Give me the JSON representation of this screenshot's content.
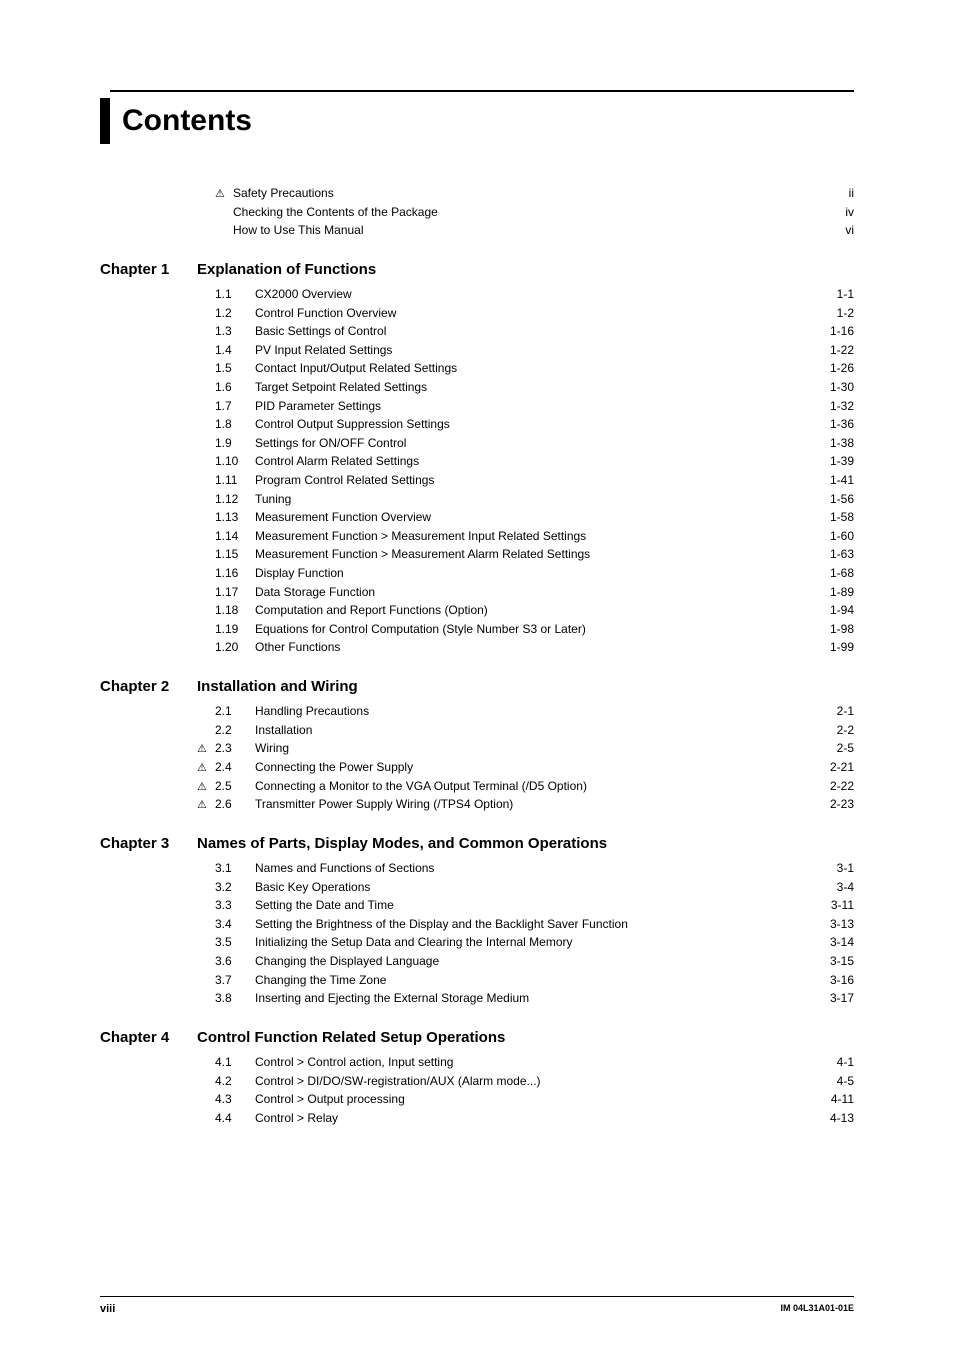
{
  "title": "Contents",
  "front_matter": [
    {
      "warn": true,
      "label": "Safety Precautions",
      "page": "ii"
    },
    {
      "warn": false,
      "label": "Checking the Contents of the Package",
      "page": "iv"
    },
    {
      "warn": false,
      "label": "How to Use This Manual",
      "page": "vi"
    }
  ],
  "chapters": [
    {
      "label": "Chapter 1",
      "title": "Explanation of Functions",
      "entries": [
        {
          "warn": false,
          "num": "1.1",
          "label": "CX2000 Overview",
          "page": "1-1"
        },
        {
          "warn": false,
          "num": "1.2",
          "label": "Control Function Overview",
          "page": "1-2"
        },
        {
          "warn": false,
          "num": "1.3",
          "label": "Basic Settings of Control",
          "page": "1-16"
        },
        {
          "warn": false,
          "num": "1.4",
          "label": "PV Input Related Settings",
          "page": "1-22"
        },
        {
          "warn": false,
          "num": "1.5",
          "label": "Contact Input/Output Related Settings",
          "page": "1-26"
        },
        {
          "warn": false,
          "num": "1.6",
          "label": "Target Setpoint Related Settings",
          "page": "1-30"
        },
        {
          "warn": false,
          "num": "1.7",
          "label": "PID Parameter Settings",
          "page": "1-32"
        },
        {
          "warn": false,
          "num": "1.8",
          "label": "Control Output Suppression Settings",
          "page": "1-36"
        },
        {
          "warn": false,
          "num": "1.9",
          "label": "Settings for ON/OFF Control",
          "page": "1-38"
        },
        {
          "warn": false,
          "num": "1.10",
          "label": "Control Alarm Related Settings",
          "page": "1-39"
        },
        {
          "warn": false,
          "num": "1.11",
          "label": "Program Control Related Settings",
          "page": "1-41"
        },
        {
          "warn": false,
          "num": "1.12",
          "label": "Tuning",
          "page": "1-56"
        },
        {
          "warn": false,
          "num": "1.13",
          "label": "Measurement Function Overview",
          "page": "1-58"
        },
        {
          "warn": false,
          "num": "1.14",
          "label": "Measurement Function > Measurement Input Related Settings",
          "page": "1-60"
        },
        {
          "warn": false,
          "num": "1.15",
          "label": "Measurement Function > Measurement Alarm Related Settings",
          "page": "1-63"
        },
        {
          "warn": false,
          "num": "1.16",
          "label": "Display Function",
          "page": "1-68"
        },
        {
          "warn": false,
          "num": "1.17",
          "label": "Data Storage Function",
          "page": "1-89"
        },
        {
          "warn": false,
          "num": "1.18",
          "label": "Computation and Report Functions (Option)",
          "page": "1-94"
        },
        {
          "warn": false,
          "num": "1.19",
          "label": "Equations for Control Computation (Style Number S3 or Later)",
          "page": "1-98"
        },
        {
          "warn": false,
          "num": "1.20",
          "label": "Other Functions",
          "page": "1-99"
        }
      ]
    },
    {
      "label": "Chapter 2",
      "title": "Installation and Wiring",
      "entries": [
        {
          "warn": false,
          "num": "2.1",
          "label": "Handling Precautions",
          "page": "2-1"
        },
        {
          "warn": false,
          "num": "2.2",
          "label": "Installation",
          "page": "2-2"
        },
        {
          "warn": true,
          "num": "2.3",
          "label": "Wiring",
          "page": "2-5"
        },
        {
          "warn": true,
          "num": "2.4",
          "label": "Connecting the Power Supply",
          "page": "2-21"
        },
        {
          "warn": true,
          "num": "2.5",
          "label": "Connecting a Monitor to the VGA Output Terminal (/D5 Option)",
          "page": "2-22"
        },
        {
          "warn": true,
          "num": "2.6",
          "label": "Transmitter Power Supply Wiring (/TPS4 Option)",
          "page": "2-23"
        }
      ]
    },
    {
      "label": "Chapter 3",
      "title": "Names of Parts, Display Modes, and Common Operations",
      "entries": [
        {
          "warn": false,
          "num": "3.1",
          "label": "Names and Functions of Sections",
          "page": "3-1"
        },
        {
          "warn": false,
          "num": "3.2",
          "label": "Basic Key Operations",
          "page": "3-4"
        },
        {
          "warn": false,
          "num": "3.3",
          "label": "Setting the Date and Time",
          "page": "3-11"
        },
        {
          "warn": false,
          "num": "3.4",
          "label": "Setting the Brightness of the Display and the Backlight Saver Function",
          "page": "3-13"
        },
        {
          "warn": false,
          "num": "3.5",
          "label": "Initializing the Setup Data and Clearing the Internal Memory",
          "page": "3-14"
        },
        {
          "warn": false,
          "num": "3.6",
          "label": "Changing the Displayed Language",
          "page": "3-15"
        },
        {
          "warn": false,
          "num": "3.7",
          "label": "Changing the Time Zone",
          "page": "3-16"
        },
        {
          "warn": false,
          "num": "3.8",
          "label": "Inserting and Ejecting the External Storage Medium",
          "page": "3-17"
        }
      ]
    },
    {
      "label": "Chapter 4",
      "title": "Control Function Related Setup Operations",
      "entries": [
        {
          "warn": false,
          "num": "4.1",
          "label": "Control > Control action, Input setting",
          "page": "4-1"
        },
        {
          "warn": false,
          "num": "4.2",
          "label": "Control > DI/DO/SW-registration/AUX (Alarm mode...)",
          "page": "4-5"
        },
        {
          "warn": false,
          "num": "4.3",
          "label": "Control > Output processing",
          "page": "4-11"
        },
        {
          "warn": false,
          "num": "4.4",
          "label": "Control > Relay",
          "page": "4-13"
        }
      ]
    }
  ],
  "footer": {
    "page_number": "viii",
    "doc_id": "IM 04L31A01-01E"
  },
  "icons": {
    "warning": "⚠"
  }
}
